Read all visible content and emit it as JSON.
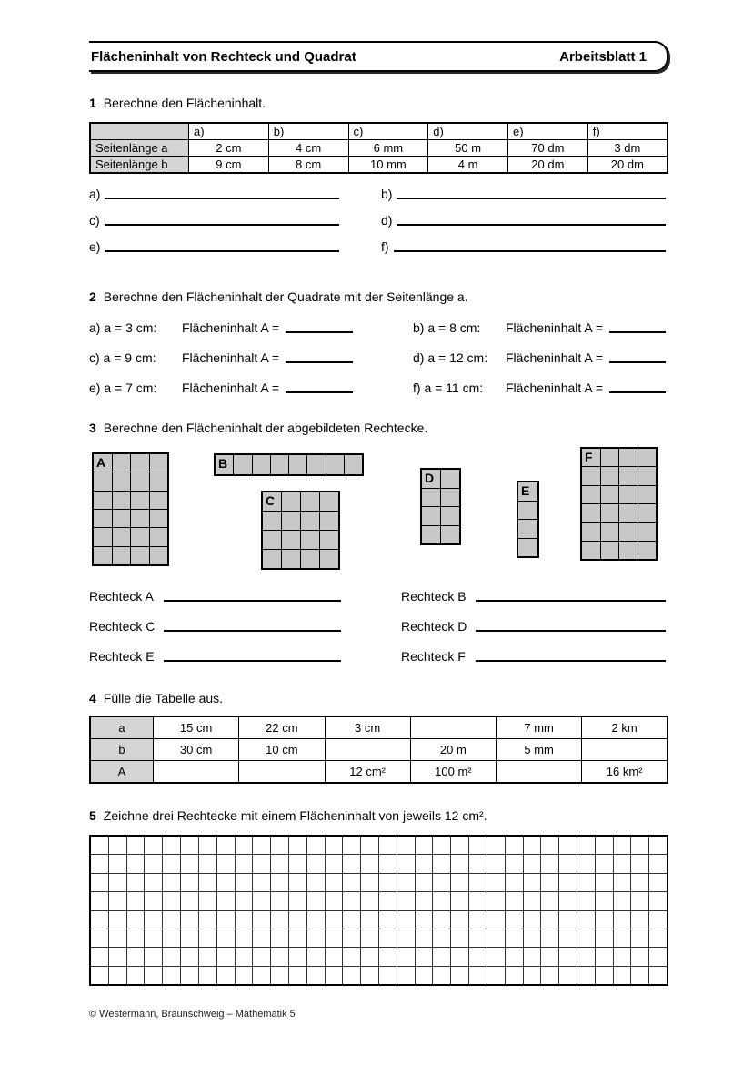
{
  "header": {
    "title": "Flächeninhalt von Rechteck und Quadrat",
    "badge": "Arbeitsblatt 1"
  },
  "tasks": [
    {
      "number": "1",
      "text": "Berechne den Flächeninhalt."
    },
    {
      "number": "2",
      "text": "Berechne den Flächeninhalt der Quadrate mit der Seitenlänge a."
    },
    {
      "number": "3",
      "text": "Berechne den Flächeninhalt der abgebildeten Rechtecke."
    },
    {
      "number": "4",
      "text": "Fülle die Tabelle aus."
    },
    {
      "number": "5",
      "text": "Zeichne drei Rechtecke mit einem Flächeninhalt von jeweils 12 cm²."
    }
  ],
  "table1": {
    "column_headers": [
      "",
      "a)",
      "b)",
      "c)",
      "d)",
      "e)",
      "f)"
    ],
    "rows": [
      {
        "label": "Seitenlänge a",
        "values": [
          "2 cm",
          "4 cm",
          "6 mm",
          "50 m",
          "70 dm",
          "3 dm"
        ]
      },
      {
        "label": "Seitenlänge b",
        "values": [
          "9 cm",
          "8 cm",
          "10 mm",
          "4 m",
          "20 dm",
          "20 dm"
        ]
      }
    ]
  },
  "task1_answers": [
    "a)",
    "b)",
    "c)",
    "d)",
    "e)",
    "f)"
  ],
  "task2_items": [
    {
      "label": "a) a = 3 cm:",
      "prompt": "Flächeninhalt A ="
    },
    {
      "label": "b) a = 8 cm:",
      "prompt": "Flächeninhalt A ="
    },
    {
      "label": "c) a = 9 cm:",
      "prompt": "Flächeninhalt A ="
    },
    {
      "label": "d) a = 12 cm:",
      "prompt": "Flächeninhalt A ="
    },
    {
      "label": "e) a = 7 cm:",
      "prompt": "Flächeninhalt A ="
    },
    {
      "label": "f) a = 11 cm:",
      "prompt": "Flächeninhalt A ="
    }
  ],
  "rectangles": [
    {
      "label": "A",
      "columns": 4,
      "rows": 6
    },
    {
      "label": "B",
      "columns": 8,
      "rows": 1
    },
    {
      "label": "C",
      "columns": 4,
      "rows": 4
    },
    {
      "label": "D",
      "columns": 2,
      "rows": 4
    },
    {
      "label": "E",
      "columns": 1,
      "rows": 4
    },
    {
      "label": "F",
      "columns": 4,
      "rows": 6
    }
  ],
  "task3_answers": [
    "Rechteck A",
    "Rechteck B",
    "Rechteck C",
    "Rechteck D",
    "Rechteck E",
    "Rechteck F"
  ],
  "table4": {
    "rows": [
      {
        "label": "a",
        "values": [
          "15 cm",
          "22 cm",
          "3 cm",
          "",
          "7 mm",
          "2 km"
        ]
      },
      {
        "label": "b",
        "values": [
          "30 cm",
          "10 cm",
          "",
          "20 m",
          "5 mm",
          ""
        ]
      },
      {
        "label": "A",
        "values": [
          "",
          "",
          "12 cm²",
          "100 m²",
          "",
          "16 km²"
        ]
      }
    ]
  },
  "drawing_grid": {
    "rows": 8,
    "columns": 32
  },
  "footer": {
    "text": "© Westermann, Braunschweig – Mathematik 5"
  },
  "colors": {
    "shape_fill": "#c8c8c8",
    "table_label_fill": "#d4d4d4"
  }
}
